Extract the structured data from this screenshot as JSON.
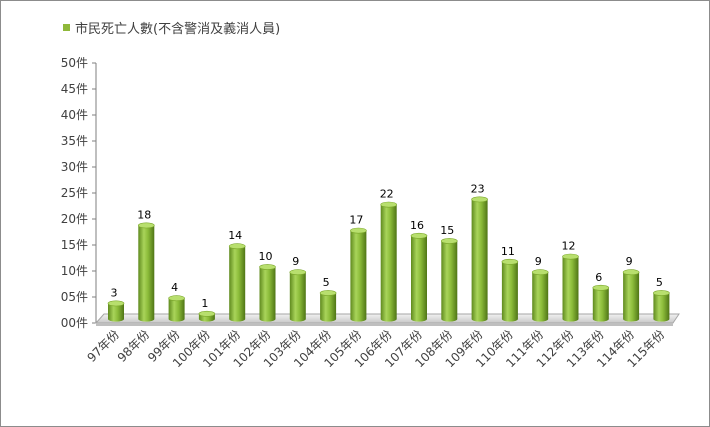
{
  "chart_data": {
    "type": "bar",
    "style": "3d-cylinder",
    "title": "",
    "legend": {
      "label": "市民死亡人數(不含警消及義消人員)",
      "position": "top-left",
      "color": "#8fb83a"
    },
    "categories": [
      "97年份",
      "98年份",
      "99年份",
      "100年份",
      "101年份",
      "102年份",
      "103年份",
      "104年份",
      "105年份",
      "106年份",
      "107年份",
      "108年份",
      "109年份",
      "110年份",
      "111年份",
      "112年份",
      "113年份",
      "114年份",
      "115年份"
    ],
    "series": [
      {
        "name": "市民死亡人數(不含警消及義消人員)",
        "values": [
          3,
          18,
          4,
          1,
          14,
          10,
          9,
          5,
          17,
          22,
          16,
          15,
          23,
          11,
          9,
          12,
          6,
          9,
          5
        ]
      }
    ],
    "yticks": [
      "00件",
      "05件",
      "10件",
      "15件",
      "20件",
      "25件",
      "30件",
      "35件",
      "40件",
      "45件",
      "50件"
    ],
    "ylim": [
      0,
      50
    ],
    "grid": false,
    "xlabel": "",
    "ylabel": ""
  }
}
